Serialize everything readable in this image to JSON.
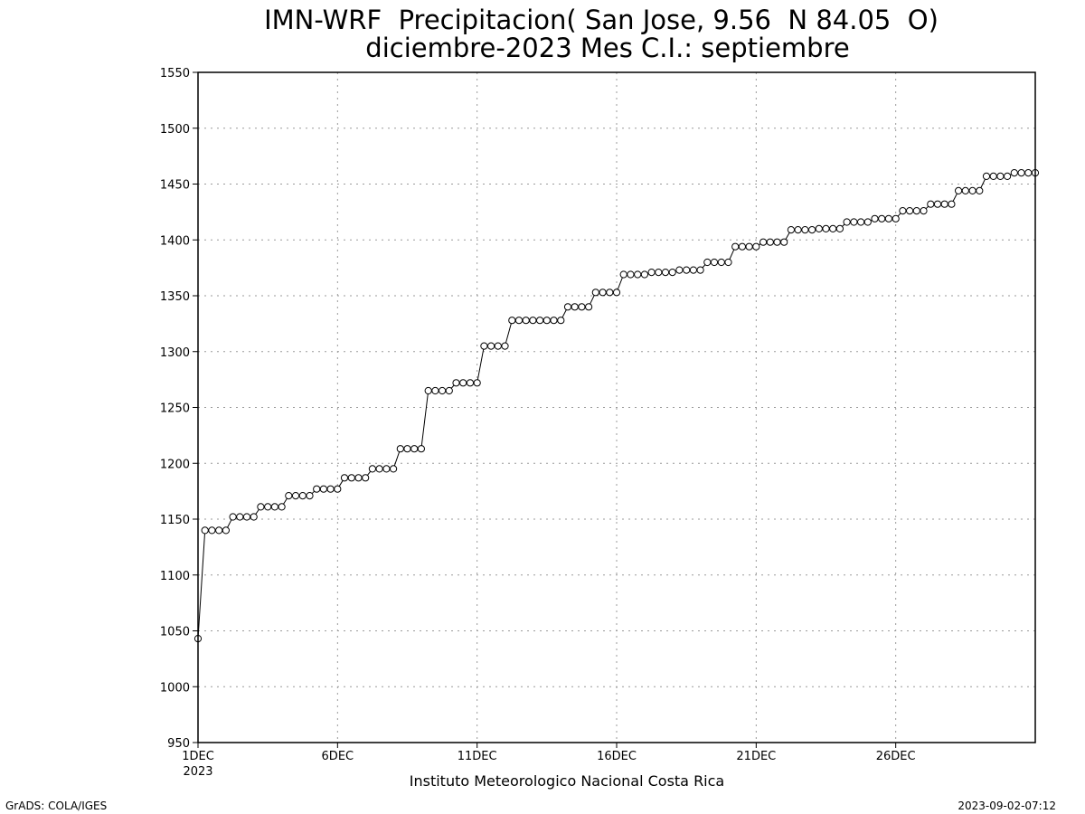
{
  "chart_data": {
    "type": "line",
    "title": "IMN-WRF  Precipitacion( San Jose, 9.56  N 84.05  O)",
    "subtitle": "diciembre-2023 Mes C.I.: septiembre",
    "xlabel": "Instituto Meteorologico Nacional Costa Rica",
    "ylabel": "",
    "ylim": [
      950,
      1550
    ],
    "yticks": [
      950,
      1000,
      1050,
      1100,
      1150,
      1200,
      1250,
      1300,
      1350,
      1400,
      1450,
      1500,
      1550
    ],
    "xlim": [
      0,
      30
    ],
    "xticks": [
      {
        "x": 0,
        "label": "1DEC",
        "sublabel": "2023"
      },
      {
        "x": 5,
        "label": "6DEC",
        "sublabel": ""
      },
      {
        "x": 10,
        "label": "11DEC",
        "sublabel": ""
      },
      {
        "x": 15,
        "label": "16DEC",
        "sublabel": ""
      },
      {
        "x": 20,
        "label": "21DEC",
        "sublabel": ""
      },
      {
        "x": 25,
        "label": "26DEC",
        "sublabel": ""
      }
    ],
    "grid": true,
    "marker": "open-circle",
    "series": [
      {
        "values": [
          1043,
          1140,
          1140,
          1140,
          1140,
          1152,
          1152,
          1152,
          1152,
          1161,
          1161,
          1161,
          1161,
          1171,
          1171,
          1171,
          1171,
          1177,
          1177,
          1177,
          1177,
          1187,
          1187,
          1187,
          1187,
          1195,
          1195,
          1195,
          1195,
          1213,
          1213,
          1213,
          1213,
          1265,
          1265,
          1265,
          1265,
          1272,
          1272,
          1272,
          1272,
          1305,
          1305,
          1305,
          1305,
          1328,
          1328,
          1328,
          1328,
          1328,
          1328,
          1328,
          1328,
          1340,
          1340,
          1340,
          1340,
          1353,
          1353,
          1353,
          1353,
          1369,
          1369,
          1369,
          1369,
          1371,
          1371,
          1371,
          1371,
          1373,
          1373,
          1373,
          1373,
          1380,
          1380,
          1380,
          1380,
          1394,
          1394,
          1394,
          1394,
          1398,
          1398,
          1398,
          1398,
          1409,
          1409,
          1409,
          1409,
          1410,
          1410,
          1410,
          1410,
          1416,
          1416,
          1416,
          1416,
          1419,
          1419,
          1419,
          1419,
          1426,
          1426,
          1426,
          1426,
          1432,
          1432,
          1432,
          1432,
          1444,
          1444,
          1444,
          1444,
          1457,
          1457,
          1457,
          1457,
          1460,
          1460,
          1460,
          1460
        ]
      }
    ]
  },
  "footer": {
    "left": "GrADS: COLA/IGES",
    "right": "2023-09-02-07:12"
  }
}
